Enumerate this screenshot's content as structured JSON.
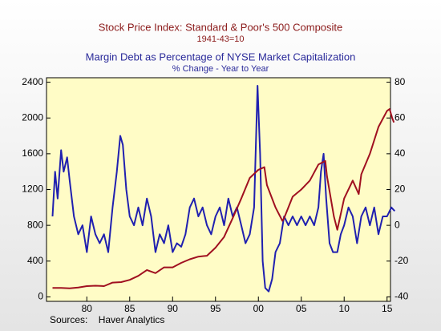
{
  "chart_data": {
    "type": "line",
    "source": "Sources:    Haver Analytics",
    "series": [
      {
        "name": "Stock Price Index: Standard & Poor's 500 Composite",
        "subtitle": "1941-43=10",
        "color": "#a01020",
        "x": [
          1976,
          1977,
          1978,
          1979,
          1980,
          1981,
          1982,
          1983,
          1984,
          1985,
          1986,
          1987,
          1988,
          1989,
          1990,
          1991,
          1992,
          1993,
          1994,
          1995,
          1996,
          1997,
          1998,
          1999,
          2000,
          2000.7,
          2001,
          2002,
          2002.8,
          2003,
          2004,
          2005,
          2006,
          2007,
          2007.8,
          2008,
          2008.8,
          2009.2,
          2010,
          2011,
          2011.7,
          2012,
          2013,
          2014,
          2015,
          2015.3,
          2015.6,
          2015.8
        ],
        "values": [
          100,
          100,
          95,
          105,
          120,
          125,
          120,
          160,
          165,
          190,
          235,
          300,
          265,
          330,
          330,
          380,
          420,
          450,
          460,
          550,
          670,
          880,
          1100,
          1330,
          1420,
          1450,
          1250,
          1000,
          850,
          880,
          1120,
          1200,
          1300,
          1480,
          1520,
          1350,
          900,
          750,
          1100,
          1300,
          1150,
          1370,
          1600,
          1900,
          2080,
          2100,
          2000,
          1950
        ]
      },
      {
        "name": "Margin Debt as Percentage of NYSE Market Capitalization",
        "subtitle": "% Change - Year to Year",
        "color": "#2020b0",
        "axis": "y2",
        "x": [
          1976,
          1976.3,
          1976.6,
          1977,
          1977.3,
          1977.7,
          1978,
          1978.5,
          1979,
          1979.5,
          1980,
          1980.5,
          1981,
          1981.5,
          1982,
          1982.5,
          1983,
          1983.5,
          1983.9,
          1984.2,
          1984.6,
          1985,
          1985.5,
          1986,
          1986.5,
          1987,
          1987.5,
          1988,
          1988.5,
          1989,
          1989.5,
          1990,
          1990.5,
          1991,
          1991.5,
          1992,
          1992.5,
          1993,
          1993.5,
          1994,
          1994.5,
          1995,
          1995.5,
          1996,
          1996.5,
          1997,
          1997.5,
          1998,
          1998.5,
          1999,
          1999.5,
          1999.9,
          2000.2,
          2000.5,
          2000.8,
          2001.2,
          2001.6,
          2002,
          2002.5,
          2003,
          2003.5,
          2004,
          2004.5,
          2005,
          2005.5,
          2006,
          2006.5,
          2007,
          2007.3,
          2007.6,
          2007.9,
          2008.3,
          2008.7,
          2009.2,
          2009.6,
          2010,
          2010.5,
          2011,
          2011.5,
          2012,
          2012.5,
          2013,
          2013.5,
          2014,
          2014.5,
          2015,
          2015.5,
          2015.9
        ],
        "values": [
          5,
          30,
          15,
          42,
          30,
          38,
          25,
          5,
          -5,
          0,
          -15,
          5,
          -5,
          -10,
          -5,
          -15,
          10,
          30,
          50,
          45,
          20,
          5,
          0,
          10,
          0,
          15,
          5,
          -15,
          -5,
          -10,
          0,
          -15,
          -10,
          -12,
          -5,
          10,
          15,
          5,
          10,
          0,
          -5,
          5,
          10,
          0,
          15,
          5,
          10,
          0,
          -10,
          -5,
          10,
          78,
          40,
          -20,
          -35,
          -37,
          -30,
          -15,
          -10,
          5,
          0,
          5,
          0,
          5,
          0,
          5,
          0,
          10,
          30,
          40,
          15,
          -10,
          -15,
          -15,
          -5,
          0,
          10,
          5,
          -10,
          5,
          10,
          0,
          10,
          -5,
          5,
          5,
          10,
          8
        ]
      }
    ],
    "xlim": [
      1975.3,
      2015.4
    ],
    "xticks": [
      {
        "value": 1980,
        "label": "80"
      },
      {
        "value": 1985,
        "label": "85"
      },
      {
        "value": 1990,
        "label": "90"
      },
      {
        "value": 1995,
        "label": "95"
      },
      {
        "value": 2000,
        "label": "00"
      },
      {
        "value": 2005,
        "label": "05"
      },
      {
        "value": 2010,
        "label": "10"
      },
      {
        "value": 2015,
        "label": "15"
      }
    ],
    "ylim": [
      -50,
      2450
    ],
    "yticks": [
      0,
      400,
      800,
      1200,
      1600,
      2000,
      2400
    ],
    "y2lim": [
      -42.5,
      82.5
    ],
    "y2ticks": [
      -40,
      -20,
      0,
      20,
      40,
      60,
      80
    ],
    "plot_background": "#fffcc6"
  }
}
